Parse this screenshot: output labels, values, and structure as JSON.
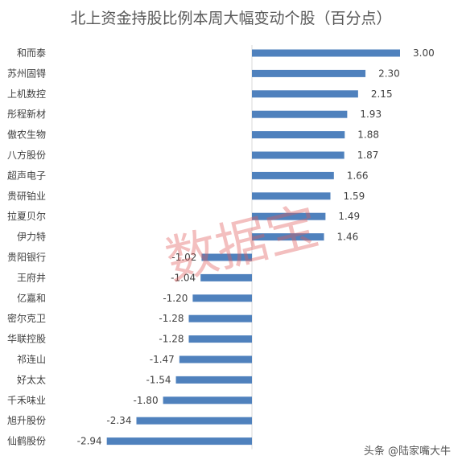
{
  "chart_data": {
    "type": "bar",
    "orientation": "horizontal",
    "title": "北上资金持股比例本周大幅变动个股（百分点）",
    "categories": [
      "和而泰",
      "苏州固锝",
      "上机数控",
      "彤程新材",
      "傲农生物",
      "八方股份",
      "超声电子",
      "贵研铂业",
      "拉夏贝尔",
      "伊力特",
      "贵阳银行",
      "王府井",
      "亿嘉和",
      "密尔克卫",
      "华联控股",
      "祁连山",
      "好太太",
      "千禾味业",
      "旭升股份",
      "仙鹤股份"
    ],
    "values": [
      3.0,
      2.3,
      2.15,
      1.93,
      1.88,
      1.87,
      1.66,
      1.59,
      1.49,
      1.46,
      -1.02,
      -1.04,
      -1.2,
      -1.28,
      -1.28,
      -1.47,
      -1.54,
      -1.8,
      -2.34,
      -2.94
    ],
    "value_labels": [
      "3.00",
      "2.30",
      "2.15",
      "1.93",
      "1.88",
      "1.87",
      "1.66",
      "1.59",
      "1.49",
      "1.46",
      "-1.02",
      "-1.04",
      "-1.20",
      "-1.28",
      "-1.28",
      "-1.47",
      "-1.54",
      "-1.80",
      "-2.34",
      "-2.94"
    ],
    "bar_color": "#4f81bd",
    "xlim": [
      -3.5,
      3.5
    ],
    "grid": false,
    "legend": "none"
  },
  "watermark": "数据宝",
  "credit": "头条 @陆家嘴大牛"
}
